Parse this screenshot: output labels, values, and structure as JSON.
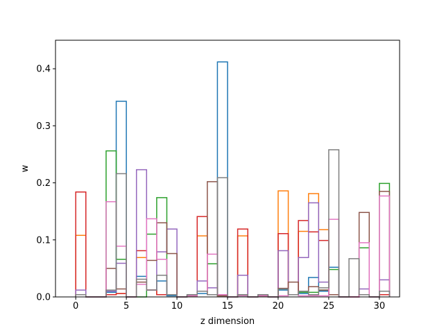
{
  "chart_data": {
    "type": "step-histogram",
    "title": "",
    "xlabel": "z dimension",
    "ylabel": "w",
    "xlim": [
      -2,
      32
    ],
    "ylim": [
      0,
      0.45
    ],
    "xticks": [
      0,
      5,
      10,
      15,
      20,
      25,
      30
    ],
    "yticks": [
      0.0,
      0.1,
      0.2,
      0.3,
      0.4
    ],
    "ytick_labels": [
      "0.0",
      "0.1",
      "0.2",
      "0.3",
      "0.4"
    ],
    "grid": false,
    "bin_edges": [
      0,
      1,
      2,
      3,
      4,
      5,
      6,
      7,
      8,
      9,
      10,
      11,
      12,
      13,
      14,
      15,
      16,
      17,
      18,
      19,
      20,
      21,
      22,
      23,
      24,
      25,
      26,
      27,
      28,
      29,
      30,
      31
    ],
    "series": [
      {
        "color": "#1f77b4",
        "values": [
          0.004,
          0,
          0,
          0.008,
          0.343,
          0,
          0.036,
          0.012,
          0.028,
          0.002,
          0,
          0.004,
          0.006,
          0.004,
          0.412,
          0,
          0.002,
          0,
          0.002,
          0,
          0.012,
          0.004,
          0.006,
          0.034,
          0.01,
          0.052,
          0,
          0,
          0.004,
          0,
          0.01
        ]
      },
      {
        "color": "#ff7f0e",
        "values": [
          0.108,
          0,
          0,
          0.004,
          0.006,
          0,
          0.069,
          0.012,
          0.004,
          0.004,
          0,
          0.002,
          0.107,
          0.004,
          0.002,
          0,
          0.107,
          0,
          0.002,
          0,
          0.186,
          0.004,
          0.115,
          0.181,
          0.118,
          0.004,
          0,
          0,
          0.004,
          0,
          0.004
        ]
      },
      {
        "color": "#2ca02c",
        "values": [
          0.004,
          0,
          0,
          0.256,
          0.066,
          0,
          0,
          0.11,
          0.174,
          0.004,
          0,
          0.002,
          0.01,
          0.058,
          0.002,
          0,
          0.002,
          0,
          0.002,
          0,
          0.014,
          0.004,
          0.008,
          0.008,
          0.012,
          0.048,
          0,
          0,
          0.086,
          0,
          0.199
        ]
      },
      {
        "color": "#d62728",
        "values": [
          0.184,
          0,
          0,
          0.004,
          0.006,
          0,
          0.081,
          0.012,
          0.004,
          0.004,
          0,
          0.002,
          0.141,
          0.004,
          0.002,
          0,
          0.119,
          0,
          0.002,
          0,
          0.111,
          0.004,
          0.134,
          0.114,
          0.099,
          0.004,
          0,
          0,
          0.004,
          0,
          0.004
        ]
      },
      {
        "color": "#9467bd",
        "values": [
          0.012,
          0,
          0,
          0.01,
          0.059,
          0,
          0.223,
          0.012,
          0.079,
          0.119,
          0,
          0.002,
          0.028,
          0.016,
          0.002,
          0,
          0.038,
          0,
          0.002,
          0,
          0.081,
          0.004,
          0.069,
          0.165,
          0.026,
          0.004,
          0,
          0,
          0.014,
          0,
          0.03
        ]
      },
      {
        "color": "#8c564b",
        "values": [
          0.004,
          0,
          0,
          0.05,
          0.014,
          0,
          0.026,
          0.064,
          0.13,
          0.076,
          0,
          0.002,
          0.01,
          0.202,
          0.002,
          0,
          0.004,
          0,
          0.002,
          0,
          0.015,
          0.026,
          0.01,
          0.018,
          0.012,
          0.004,
          0,
          0,
          0.148,
          0,
          0.185
        ]
      },
      {
        "color": "#e377c2",
        "values": [
          0.004,
          0,
          0,
          0.167,
          0.089,
          0,
          0.022,
          0.137,
          0.066,
          0.004,
          0,
          0.002,
          0.01,
          0.075,
          0.004,
          0,
          0.002,
          0,
          0.002,
          0,
          0.002,
          0.004,
          0.002,
          0.002,
          0.002,
          0.136,
          0,
          0,
          0.095,
          0,
          0.177
        ]
      },
      {
        "color": "#7f7f7f",
        "values": [
          0.004,
          0,
          0,
          0.012,
          0.216,
          0,
          0.031,
          0.012,
          0.038,
          0.004,
          0,
          0.004,
          0.01,
          0.004,
          0.209,
          0,
          0.004,
          0,
          0.004,
          0,
          0.014,
          0.004,
          0.01,
          0.004,
          0.016,
          0.258,
          0,
          0.067,
          0.004,
          0,
          0.01
        ]
      }
    ]
  }
}
